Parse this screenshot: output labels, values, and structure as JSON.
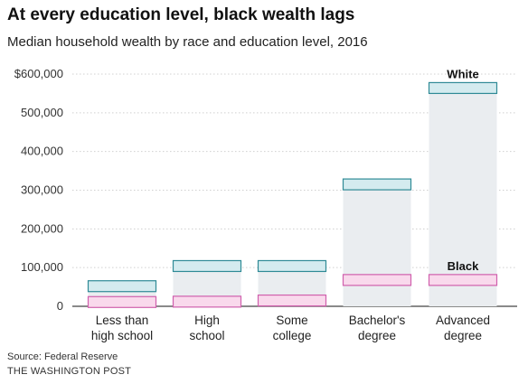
{
  "title": "At every education level, black wealth lags",
  "subtitle": "Median household wealth by race and education level, 2016",
  "source": "Source: Federal Reserve",
  "credit": "THE WASHINGTON POST",
  "colors": {
    "white_fill": "#d4ebef",
    "white_stroke": "#2f8a96",
    "black_fill": "#f9d9ec",
    "black_stroke": "#d060ad",
    "column_fill": "#eaedf0",
    "grid": "#d0d0d0",
    "axis": "#444444"
  },
  "chart_data": {
    "type": "bar",
    "categories": [
      "Less than\nhigh school",
      "High\nschool",
      "Some\ncollege",
      "Bachelor's\ndegree",
      "Advanced\ndegree"
    ],
    "series": [
      {
        "name": "White",
        "values": [
          52000,
          104000,
          104000,
          315000,
          564000
        ]
      },
      {
        "name": "Black",
        "values": [
          11000,
          12000,
          15000,
          68000,
          68000
        ]
      }
    ],
    "yticks": [
      0,
      100000,
      200000,
      300000,
      400000,
      500000,
      600000
    ],
    "ytick_labels": [
      "0",
      "100,000",
      "200,000",
      "300,000",
      "400,000",
      "500,000",
      "$600,000"
    ],
    "ylim": [
      0,
      600000
    ],
    "xlabel": "",
    "ylabel": "",
    "grid": true
  }
}
